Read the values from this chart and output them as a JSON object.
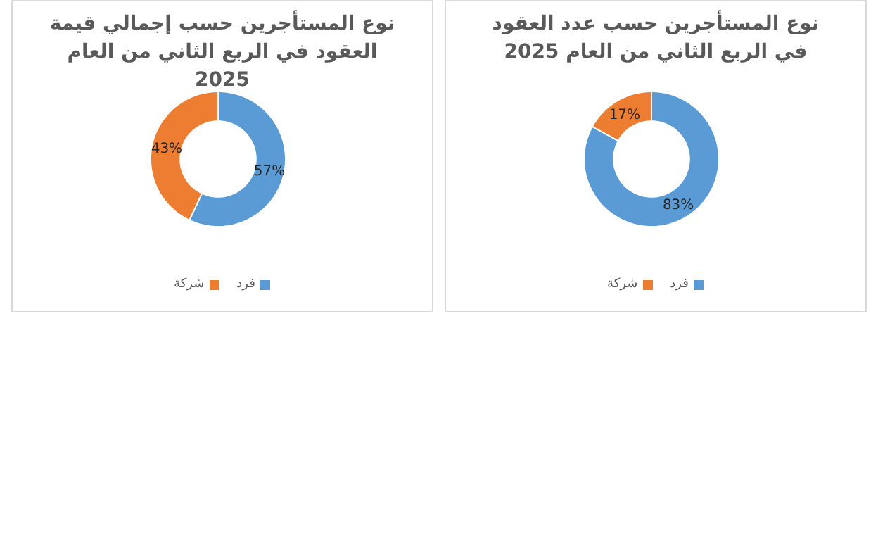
{
  "chart_data": [
    {
      "type": "donut",
      "title": "نوع المستأجرين حسب إجمالي قيمة العقود في الربع الثاني من العام 2025",
      "categories": [
        "فرد",
        "شركة"
      ],
      "values": [
        57,
        43
      ],
      "colors": [
        "#5b9bd5",
        "#ed7d31"
      ],
      "value_labels": [
        "57%",
        "43%"
      ],
      "legend": "bottom"
    },
    {
      "type": "donut",
      "title": "نوع المستأجرين حسب عدد العقود في الربع الثاني من العام 2025",
      "categories": [
        "فرد",
        "شركة"
      ],
      "values": [
        83,
        17
      ],
      "colors": [
        "#5b9bd5",
        "#ed7d31"
      ],
      "value_labels": [
        "83%",
        "17%"
      ],
      "legend": "bottom"
    }
  ]
}
